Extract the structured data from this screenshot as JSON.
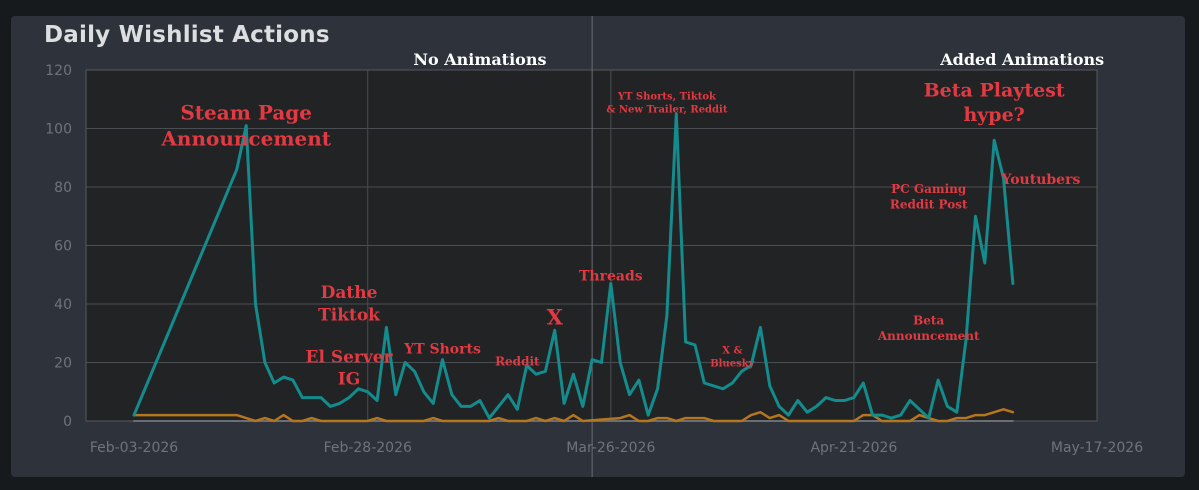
{
  "chart_data": {
    "type": "line",
    "title": "Daily Wishlist Actions",
    "x_ticks": [
      "Feb-03-2026",
      "Feb-28-2026",
      "Mar-26-2026",
      "Apr-21-2026",
      "May-17-2026"
    ],
    "y_ticks": [
      "0",
      "20",
      "40",
      "60",
      "80",
      "100",
      "120"
    ],
    "ylim": [
      0,
      120
    ],
    "grid": true,
    "series": [
      {
        "color": "#148b8c",
        "points": [
          [
            "Feb-03-2026",
            2
          ],
          [
            "Feb-14-2026",
            86
          ],
          [
            "Feb-15-2026",
            101
          ],
          [
            "Feb-16-2026",
            40
          ],
          [
            "Feb-17-2026",
            20
          ],
          [
            "Feb-18-2026",
            13
          ],
          [
            "Feb-19-2026",
            15
          ],
          [
            "Feb-20-2026",
            14
          ],
          [
            "Feb-21-2026",
            8
          ],
          [
            "Feb-22-2026",
            8
          ],
          [
            "Feb-23-2026",
            8
          ],
          [
            "Feb-24-2026",
            5
          ],
          [
            "Feb-25-2026",
            6
          ],
          [
            "Feb-26-2026",
            8
          ],
          [
            "Feb-27-2026",
            11
          ],
          [
            "Feb-28-2026",
            10
          ],
          [
            "Mar-01-2026",
            7
          ],
          [
            "Mar-02-2026",
            32
          ],
          [
            "Mar-03-2026",
            9
          ],
          [
            "Mar-04-2026",
            20
          ],
          [
            "Mar-05-2026",
            17
          ],
          [
            "Mar-06-2026",
            10
          ],
          [
            "Mar-07-2026",
            6
          ],
          [
            "Mar-08-2026",
            21
          ],
          [
            "Mar-09-2026",
            9
          ],
          [
            "Mar-10-2026",
            5
          ],
          [
            "Mar-11-2026",
            5
          ],
          [
            "Mar-12-2026",
            7
          ],
          [
            "Mar-13-2026",
            1
          ],
          [
            "Mar-14-2026",
            5
          ],
          [
            "Mar-15-2026",
            9
          ],
          [
            "Mar-16-2026",
            4
          ],
          [
            "Mar-17-2026",
            19
          ],
          [
            "Mar-18-2026",
            16
          ],
          [
            "Mar-19-2026",
            17
          ],
          [
            "Mar-20-2026",
            31
          ],
          [
            "Mar-21-2026",
            6
          ],
          [
            "Mar-22-2026",
            16
          ],
          [
            "Mar-23-2026",
            5
          ],
          [
            "Mar-24-2026",
            21
          ],
          [
            "Mar-25-2026",
            20
          ],
          [
            "Mar-26-2026",
            47
          ],
          [
            "Mar-27-2026",
            20
          ],
          [
            "Mar-28-2026",
            9
          ],
          [
            "Mar-29-2026",
            14
          ],
          [
            "Mar-30-2026",
            2
          ],
          [
            "Mar-31-2026",
            11
          ],
          [
            "Apr-01-2026",
            36
          ],
          [
            "Apr-02-2026",
            105
          ],
          [
            "Apr-03-2026",
            27
          ],
          [
            "Apr-04-2026",
            26
          ],
          [
            "Apr-05-2026",
            13
          ],
          [
            "Apr-06-2026",
            12
          ],
          [
            "Apr-07-2026",
            11
          ],
          [
            "Apr-08-2026",
            13
          ],
          [
            "Apr-09-2026",
            17
          ],
          [
            "Apr-10-2026",
            19
          ],
          [
            "Apr-11-2026",
            32
          ],
          [
            "Apr-12-2026",
            12
          ],
          [
            "Apr-13-2026",
            5
          ],
          [
            "Apr-14-2026",
            2
          ],
          [
            "Apr-15-2026",
            7
          ],
          [
            "Apr-16-2026",
            3
          ],
          [
            "Apr-17-2026",
            5
          ],
          [
            "Apr-18-2026",
            8
          ],
          [
            "Apr-19-2026",
            7
          ],
          [
            "Apr-20-2026",
            7
          ],
          [
            "Apr-21-2026",
            8
          ],
          [
            "Apr-22-2026",
            13
          ],
          [
            "Apr-23-2026",
            2
          ],
          [
            "Apr-24-2026",
            2
          ],
          [
            "Apr-25-2026",
            1
          ],
          [
            "Apr-26-2026",
            2
          ],
          [
            "Apr-27-2026",
            7
          ],
          [
            "Apr-28-2026",
            4
          ],
          [
            "Apr-29-2026",
            1
          ],
          [
            "Apr-30-2026",
            14
          ],
          [
            "May-01-2026",
            5
          ],
          [
            "May-02-2026",
            3
          ],
          [
            "May-03-2026",
            28
          ],
          [
            "May-04-2026",
            70
          ],
          [
            "May-05-2026",
            54
          ],
          [
            "May-06-2026",
            96
          ],
          [
            "May-07-2026",
            83
          ],
          [
            "May-08-2026",
            47
          ]
        ]
      },
      {
        "color": "#b5761e",
        "points": [
          [
            "Feb-03-2026",
            2
          ],
          [
            "Feb-14-2026",
            2
          ],
          [
            "Feb-15-2026",
            1
          ],
          [
            "Feb-16-2026",
            0
          ],
          [
            "Feb-17-2026",
            1
          ],
          [
            "Feb-18-2026",
            0
          ],
          [
            "Feb-19-2026",
            2
          ],
          [
            "Feb-20-2026",
            0
          ],
          [
            "Feb-21-2026",
            0
          ],
          [
            "Feb-22-2026",
            1
          ],
          [
            "Feb-23-2026",
            0
          ],
          [
            "Feb-28-2026",
            0
          ],
          [
            "Mar-01-2026",
            1
          ],
          [
            "Mar-02-2026",
            0
          ],
          [
            "Mar-06-2026",
            0
          ],
          [
            "Mar-07-2026",
            1
          ],
          [
            "Mar-08-2026",
            0
          ],
          [
            "Mar-13-2026",
            0
          ],
          [
            "Mar-14-2026",
            1
          ],
          [
            "Mar-15-2026",
            0
          ],
          [
            "Mar-17-2026",
            0
          ],
          [
            "Mar-18-2026",
            1
          ],
          [
            "Mar-19-2026",
            0
          ],
          [
            "Mar-20-2026",
            1
          ],
          [
            "Mar-21-2026",
            0
          ],
          [
            "Mar-22-2026",
            2
          ],
          [
            "Mar-23-2026",
            0
          ],
          [
            "Mar-27-2026",
            1
          ],
          [
            "Mar-28-2026",
            2
          ],
          [
            "Mar-29-2026",
            0
          ],
          [
            "Mar-30-2026",
            0
          ],
          [
            "Mar-31-2026",
            1
          ],
          [
            "Apr-01-2026",
            1
          ],
          [
            "Apr-02-2026",
            0
          ],
          [
            "Apr-03-2026",
            1
          ],
          [
            "Apr-04-2026",
            1
          ],
          [
            "Apr-05-2026",
            1
          ],
          [
            "Apr-06-2026",
            0
          ],
          [
            "Apr-09-2026",
            0
          ],
          [
            "Apr-10-2026",
            2
          ],
          [
            "Apr-11-2026",
            3
          ],
          [
            "Apr-12-2026",
            1
          ],
          [
            "Apr-13-2026",
            2
          ],
          [
            "Apr-14-2026",
            0
          ],
          [
            "Apr-20-2026",
            0
          ],
          [
            "Apr-21-2026",
            0
          ],
          [
            "Apr-22-2026",
            2
          ],
          [
            "Apr-23-2026",
            2
          ],
          [
            "Apr-24-2026",
            0
          ],
          [
            "Apr-27-2026",
            0
          ],
          [
            "Apr-28-2026",
            2
          ],
          [
            "Apr-29-2026",
            1
          ],
          [
            "Apr-30-2026",
            0
          ],
          [
            "May-01-2026",
            0
          ],
          [
            "May-02-2026",
            1
          ],
          [
            "May-03-2026",
            1
          ],
          [
            "May-04-2026",
            2
          ],
          [
            "May-05-2026",
            2
          ],
          [
            "May-06-2026",
            3
          ],
          [
            "May-07-2026",
            4
          ],
          [
            "May-08-2026",
            3
          ]
        ]
      },
      {
        "color": "#6b6f74",
        "points": [
          [
            "Feb-03-2026",
            0
          ],
          [
            "May-08-2026",
            0
          ]
        ]
      }
    ],
    "annotations": [
      {
        "text": [
          "Steam Page",
          "Announcement"
        ],
        "x": "Feb-15-2026",
        "y": 103,
        "size": 20
      },
      {
        "text": [
          "Dathe",
          "Tiktok"
        ],
        "x": "Feb-26-2026",
        "y": 42,
        "size": 17
      },
      {
        "text": [
          "El Server",
          "IG"
        ],
        "x": "Feb-26-2026",
        "y": 20,
        "size": 17
      },
      {
        "text": [
          "YT Shorts"
        ],
        "x": "Mar-08-2026",
        "y": 23,
        "size": 14
      },
      {
        "text": [
          "Reddit"
        ],
        "x": "Mar-16-2026",
        "y": 19,
        "size": 12
      },
      {
        "text": [
          "X"
        ],
        "x": "Mar-20-2026",
        "y": 33,
        "size": 21
      },
      {
        "text": [
          "Threads"
        ],
        "x": "Mar-26-2026",
        "y": 48,
        "size": 14
      },
      {
        "text": [
          "YT Shorts, Tiktok",
          "& New Trailer, Reddit"
        ],
        "x": "Apr-01-2026",
        "y": 110,
        "size": 10
      },
      {
        "text": [
          "X &",
          "Bluesky"
        ],
        "x": "Apr-08-2026",
        "y": 23,
        "size": 10
      },
      {
        "text": [
          "Beta Playtest",
          "hype?"
        ],
        "x": "May-06-2026",
        "y": 111,
        "size": 19
      },
      {
        "text": [
          "Youtubers"
        ],
        "x": "May-11-2026",
        "y": 81,
        "size": 14
      },
      {
        "text": [
          "PC Gaming",
          "Reddit Post"
        ],
        "x": "Apr-29-2026",
        "y": 78,
        "size": 12
      },
      {
        "text": [
          "Beta",
          "Announcement"
        ],
        "x": "Apr-29-2026",
        "y": 33,
        "size": 12
      }
    ],
    "sections": [
      {
        "label": "No Animations",
        "x": "Mar-12-2026",
        "align": "middle"
      },
      {
        "label": "Added Animations",
        "x": "May-09-2026",
        "align": "middle"
      }
    ],
    "divider_x": "Mar-24-2026"
  }
}
